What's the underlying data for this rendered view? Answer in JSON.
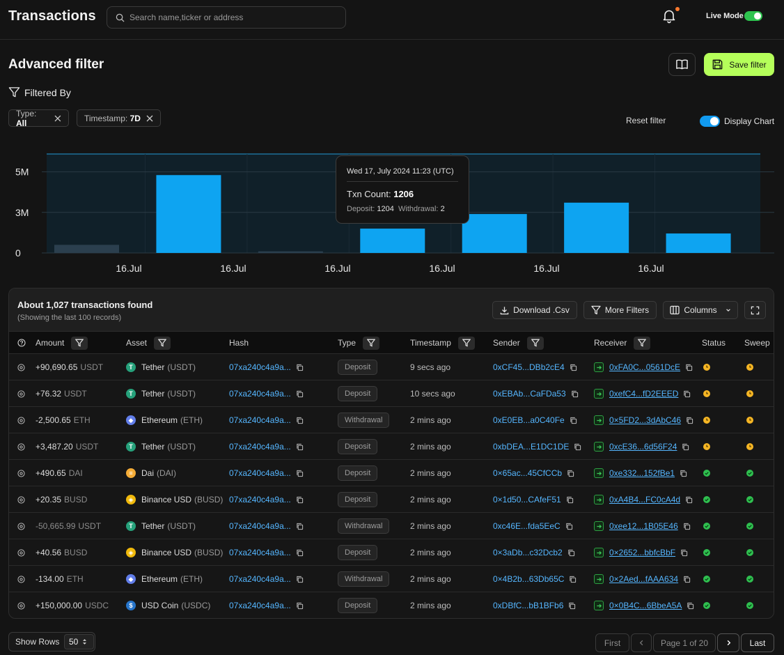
{
  "header": {
    "title": "Transactions",
    "search_placeholder": "Search name,ticker or address",
    "live_mode_label": "Live Mode"
  },
  "page": {
    "title": "Advanced filter",
    "save_filter_label": "Save filter",
    "filtered_by_label": "Filtered By",
    "chips": [
      {
        "key": "Type:",
        "value": "All"
      },
      {
        "key": "Timestamp:",
        "value": "7D"
      }
    ],
    "reset_filter_label": "Reset filter",
    "display_chart_label": "Display Chart"
  },
  "chart_data": {
    "type": "bar",
    "categories": [
      "16.Jul",
      "16.Jul",
      "16.Jul",
      "16.Jul",
      "16.Jul",
      "16.Jul",
      "16.Jul"
    ],
    "values": [
      0.5,
      4.8,
      0.1,
      1.5,
      2.4,
      3.1,
      1.2
    ],
    "highlighted": [
      false,
      true,
      false,
      true,
      true,
      true,
      true
    ],
    "yticks": [
      "0",
      "3M",
      "5M"
    ],
    "ytick_values": [
      0,
      2.5,
      5
    ],
    "ylim": [
      0,
      6.1
    ],
    "colors": {
      "active": "#0ea4f1",
      "inactive": "#2b3f4e",
      "plot_bg": "#102029"
    }
  },
  "tooltip": {
    "date": "Wed 17, July 2024 11:23 (UTC)",
    "count_label": "Txn Count:",
    "count_value": "1206",
    "deposit_label": "Deposit:",
    "deposit_value": "1204",
    "withdrawal_label": "Withdrawal:",
    "withdrawal_value": "2"
  },
  "table": {
    "found": "About 1,027 transactions found",
    "showing": "(Showing the last 100 records)",
    "download_label": "Download .Csv",
    "more_filters_label": "More Filters",
    "columns_label": "Columns",
    "columns": {
      "amount": "Amount",
      "asset": "Asset",
      "hash": "Hash",
      "type": "Type",
      "timestamp": "Timestamp",
      "sender": "Sender",
      "receiver": "Receiver",
      "status": "Status",
      "sweep": "Sweep"
    },
    "rows": [
      {
        "amount": "+90,690.65",
        "currency": "USDT",
        "asset": "Tether",
        "asset_sym": "(USDT)",
        "coin": "usdt",
        "hash": "07xa240c4a9a...",
        "type": "Deposit",
        "time": "9 secs ago",
        "sender": "0xCF45...DBb2cE4",
        "receiver": "0xFA0C...0561DcE",
        "status": "pending",
        "sweep": "pending",
        "dim": false
      },
      {
        "amount": "+76.32",
        "currency": "USDT",
        "asset": "Tether",
        "asset_sym": "(USDT)",
        "coin": "usdt",
        "hash": "07xa240c4a9a...",
        "type": "Deposit",
        "time": "10 secs ago",
        "sender": "0xEBAb...CaFDa53",
        "receiver": "0xefC4...fD2EEED",
        "status": "pending",
        "sweep": "pending",
        "dim": false
      },
      {
        "amount": "-2,500.65",
        "currency": "ETH",
        "asset": "Ethereum",
        "asset_sym": "(ETH)",
        "coin": "eth",
        "hash": "07xa240c4a9a...",
        "type": "Withdrawal",
        "time": "2 mins ago",
        "sender": "0xE0EB...a0C40Fe",
        "receiver": "0×5FD2...3dAbC46",
        "status": "pending",
        "sweep": "pending",
        "dim": false
      },
      {
        "amount": "+3,487.20",
        "currency": "USDT",
        "asset": "Tether",
        "asset_sym": "(USDT)",
        "coin": "usdt",
        "hash": "07xa240c4a9a...",
        "type": "Deposit",
        "time": "2 mins ago",
        "sender": "0xbDEA...E1DC1DE",
        "receiver": "0xcE36...6d56F24",
        "status": "pending",
        "sweep": "pending",
        "dim": false
      },
      {
        "amount": "+490.65",
        "currency": "DAI",
        "asset": "Dai",
        "asset_sym": "(DAI)",
        "coin": "dai",
        "hash": "07xa240c4a9a...",
        "type": "Deposit",
        "time": "2 mins ago",
        "sender": "0×65ac...45CfCCb",
        "receiver": "0xe332...152fBe1",
        "status": "done",
        "sweep": "done",
        "dim": false
      },
      {
        "amount": "+20.35",
        "currency": "BUSD",
        "asset": "Binance USD",
        "asset_sym": "(BUSD)",
        "coin": "busd",
        "hash": "07xa240c4a9a...",
        "type": "Deposit",
        "time": "2 mins ago",
        "sender": "0×1d50...CAfeF51",
        "receiver": "0xA4B4...FC0cA4d",
        "status": "done",
        "sweep": "done",
        "dim": false
      },
      {
        "amount": "-50,665.99",
        "currency": "USDT",
        "asset": "Tether",
        "asset_sym": "(USDT)",
        "coin": "usdt",
        "hash": "07xa240c4a9a...",
        "type": "Withdrawal",
        "time": "2 mins ago",
        "sender": "0xc46E...fda5EeC",
        "receiver": "0xee12...1B05E46",
        "status": "done",
        "sweep": "done",
        "dim": true
      },
      {
        "amount": "+40.56",
        "currency": "BUSD",
        "asset": "Binance USD",
        "asset_sym": "(BUSD)",
        "coin": "busd",
        "hash": "07xa240c4a9a...",
        "type": "Deposit",
        "time": "2 mins ago",
        "sender": "0×3aDb...c32Dcb2",
        "receiver": "0×2652...bbfcBbF",
        "status": "done",
        "sweep": "done",
        "dim": false
      },
      {
        "amount": "-134.00",
        "currency": "ETH",
        "asset": "Ethereum",
        "asset_sym": "(ETH)",
        "coin": "eth",
        "hash": "07xa240c4a9a...",
        "type": "Withdrawal",
        "time": "2 mins ago",
        "sender": "0×4B2b...63Db65C",
        "receiver": "0×2Aed...fAAA634",
        "status": "done",
        "sweep": "done",
        "dim": false
      },
      {
        "amount": "+150,000.00",
        "currency": "USDC",
        "asset": "USD Coin",
        "asset_sym": "(USDC)",
        "coin": "usdc",
        "hash": "07xa240c4a9a...",
        "type": "Deposit",
        "time": "2 mins ago",
        "sender": "0xDBfC...bB1BFb6",
        "receiver": "0×0B4C...6BbeA5A",
        "status": "done",
        "sweep": "done",
        "dim": false
      }
    ]
  },
  "footer": {
    "show_rows_label": "Show Rows",
    "rows_value": "50",
    "first_label": "First",
    "page_info": "Page 1 of 20",
    "last_label": "Last"
  },
  "colors": {
    "accent_green": "#b5ff5a",
    "link_blue": "#55b6ff",
    "pending": "#f5b524",
    "done": "#2fbf4f",
    "coin_usdt": "#26a17b",
    "coin_eth": "#627eea",
    "coin_dai": "#f5ac37",
    "coin_busd": "#f0b90b",
    "coin_usdc": "#2775ca"
  }
}
